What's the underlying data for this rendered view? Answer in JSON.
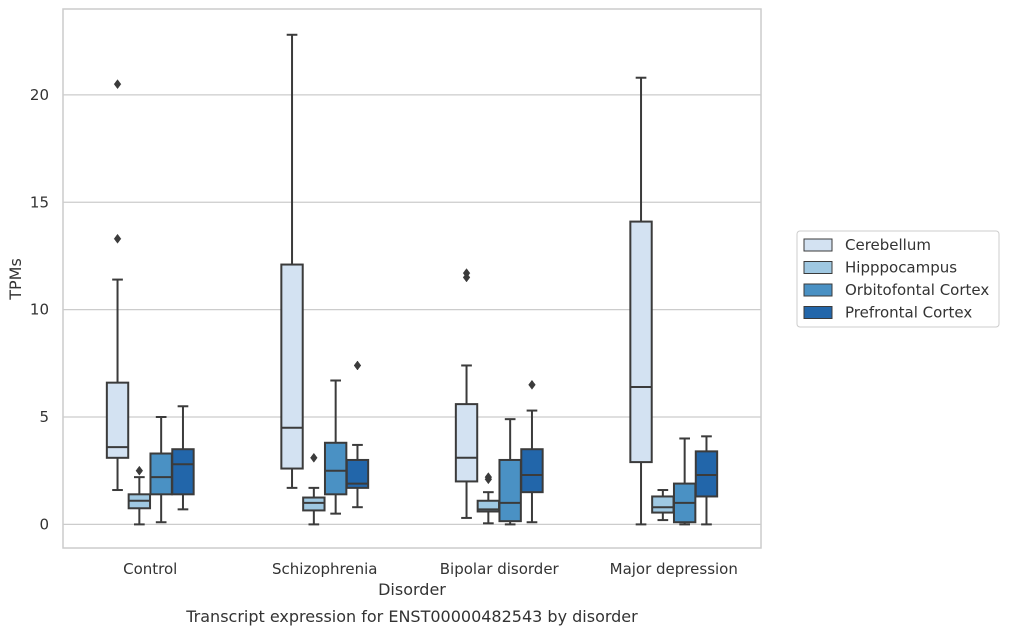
{
  "chart_data": {
    "type": "box",
    "xlabel": "Disorder",
    "ylabel": "TPMs",
    "caption": "Transcript expression for ENST00000482543 by disorder",
    "ylim": [
      -1.1,
      24
    ],
    "yticks": [
      0,
      5,
      10,
      15,
      20
    ],
    "grid": "horizontal",
    "legend_placement": "right",
    "categories": [
      "Control",
      "Schizophrenia",
      "Bipolar disorder",
      "Major depression"
    ],
    "series": [
      {
        "name": "Cerebellum",
        "color": "#d3e2f2",
        "boxes": [
          {
            "whislo": 1.6,
            "q1": 3.1,
            "med": 3.6,
            "q3": 6.6,
            "whishi": 11.4,
            "fliers": [
              13.3,
              20.5
            ]
          },
          {
            "whislo": 1.7,
            "q1": 2.6,
            "med": 4.5,
            "q3": 12.1,
            "whishi": 22.8,
            "fliers": []
          },
          {
            "whislo": 0.3,
            "q1": 2.0,
            "med": 3.1,
            "q3": 5.6,
            "whishi": 7.4,
            "fliers": [
              11.5,
              11.7
            ]
          },
          {
            "whislo": 0.0,
            "q1": 2.9,
            "med": 6.4,
            "q3": 14.1,
            "whishi": 20.8,
            "fliers": []
          }
        ]
      },
      {
        "name": "Hipppocampus",
        "color": "#9fc8e2",
        "boxes": [
          {
            "whislo": 0.0,
            "q1": 0.75,
            "med": 1.1,
            "q3": 1.4,
            "whishi": 2.2,
            "fliers": [
              2.5
            ]
          },
          {
            "whislo": 0.0,
            "q1": 0.65,
            "med": 1.0,
            "q3": 1.25,
            "whishi": 1.7,
            "fliers": [
              3.1
            ]
          },
          {
            "whislo": 0.05,
            "q1": 0.6,
            "med": 0.7,
            "q3": 1.1,
            "whishi": 1.5,
            "fliers": [
              2.1,
              2.2
            ]
          },
          {
            "whislo": 0.2,
            "q1": 0.55,
            "med": 0.8,
            "q3": 1.3,
            "whishi": 1.6,
            "fliers": []
          }
        ]
      },
      {
        "name": "Orbitofontal Cortex",
        "color": "#4a91c4",
        "boxes": [
          {
            "whislo": 0.1,
            "q1": 1.4,
            "med": 2.2,
            "q3": 3.3,
            "whishi": 5.0,
            "fliers": []
          },
          {
            "whislo": 0.5,
            "q1": 1.4,
            "med": 2.5,
            "q3": 3.8,
            "whishi": 6.7,
            "fliers": []
          },
          {
            "whislo": 0.0,
            "q1": 0.15,
            "med": 1.0,
            "q3": 3.0,
            "whishi": 4.9,
            "fliers": []
          },
          {
            "whislo": 0.0,
            "q1": 0.1,
            "med": 1.0,
            "q3": 1.9,
            "whishi": 4.0,
            "fliers": []
          }
        ]
      },
      {
        "name": "Prefrontal Cortex",
        "color": "#2266aa",
        "boxes": [
          {
            "whislo": 0.7,
            "q1": 1.4,
            "med": 2.8,
            "q3": 3.5,
            "whishi": 5.5,
            "fliers": []
          },
          {
            "whislo": 0.8,
            "q1": 1.7,
            "med": 1.9,
            "q3": 3.0,
            "whishi": 3.7,
            "fliers": [
              7.4
            ]
          },
          {
            "whislo": 0.1,
            "q1": 1.5,
            "med": 2.3,
            "q3": 3.5,
            "whishi": 5.3,
            "fliers": [
              6.5
            ]
          },
          {
            "whislo": 0.0,
            "q1": 1.3,
            "med": 2.3,
            "q3": 3.4,
            "whishi": 4.1,
            "fliers": []
          }
        ]
      }
    ]
  }
}
